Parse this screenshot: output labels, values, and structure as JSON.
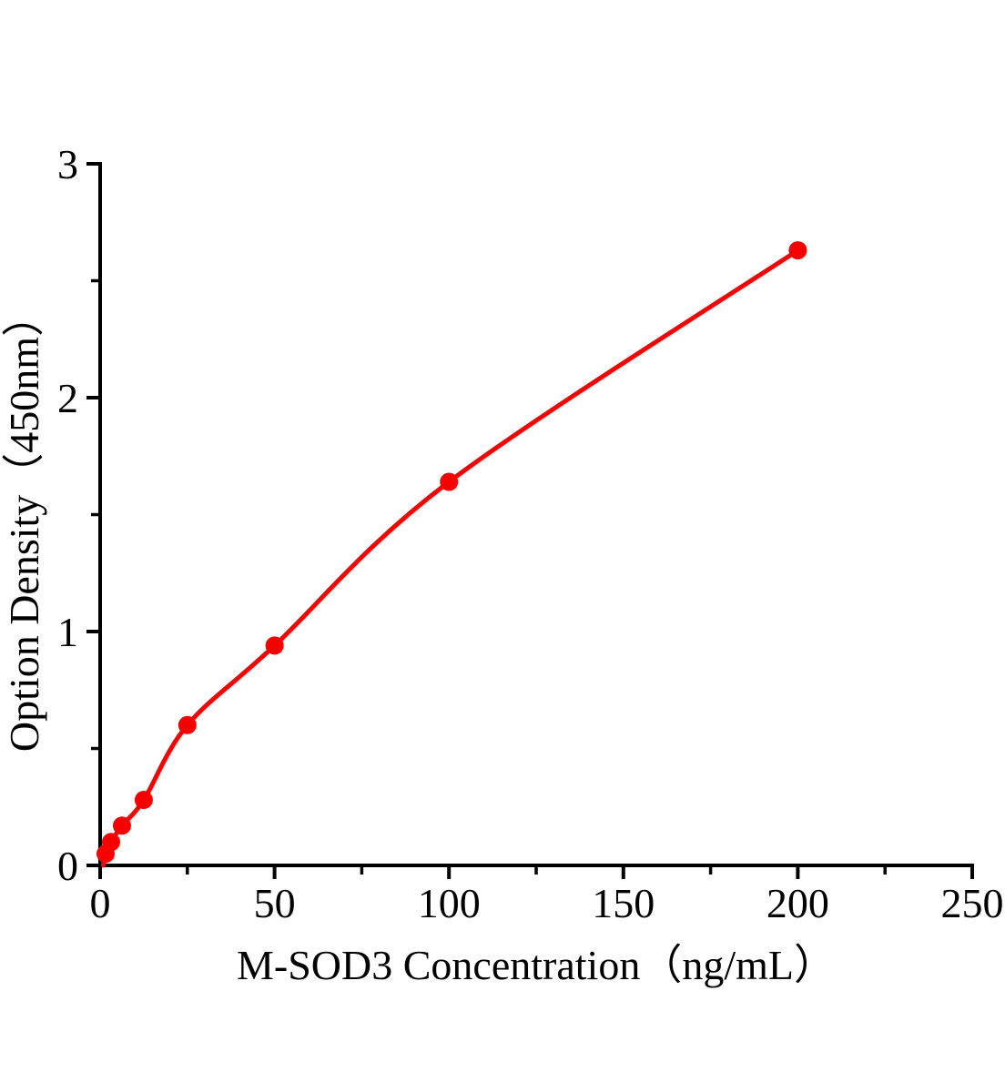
{
  "figure": {
    "background_color": "#ffffff",
    "description": "ELISA standard curve plot"
  },
  "chart_data": {
    "type": "scatter",
    "curve": "smooth fitted line through points",
    "title": "",
    "xlabel": "M-SOD3 Concentration（ng/mL）",
    "ylabel": "Option Density（450nm）",
    "xlim": [
      0,
      250
    ],
    "ylim": [
      0,
      3
    ],
    "grid": false,
    "legend": "none",
    "x": [
      1.56,
      3.125,
      6.25,
      12.5,
      25,
      50,
      100,
      200
    ],
    "y": [
      0.05,
      0.1,
      0.17,
      0.28,
      0.6,
      0.94,
      1.64,
      2.63
    ],
    "curve_start": {
      "x": 0.9,
      "y": 0.0
    },
    "x_ticks_major": [
      0,
      50,
      100,
      150,
      200,
      250
    ],
    "x_ticks_minor": [
      25,
      75,
      125,
      175,
      225
    ],
    "x_tick_labels": [
      "0",
      "50",
      "100",
      "150",
      "200",
      "250"
    ],
    "y_ticks_major": [
      0,
      1,
      2,
      3
    ],
    "y_ticks_minor": [
      0.5,
      1.5,
      2.5
    ],
    "y_tick_labels": [
      "0",
      "1",
      "2",
      "3"
    ],
    "series_color": "#f60000",
    "axis_color": "#000000",
    "marker": "filled-circle",
    "marker_radius_px": 10
  }
}
